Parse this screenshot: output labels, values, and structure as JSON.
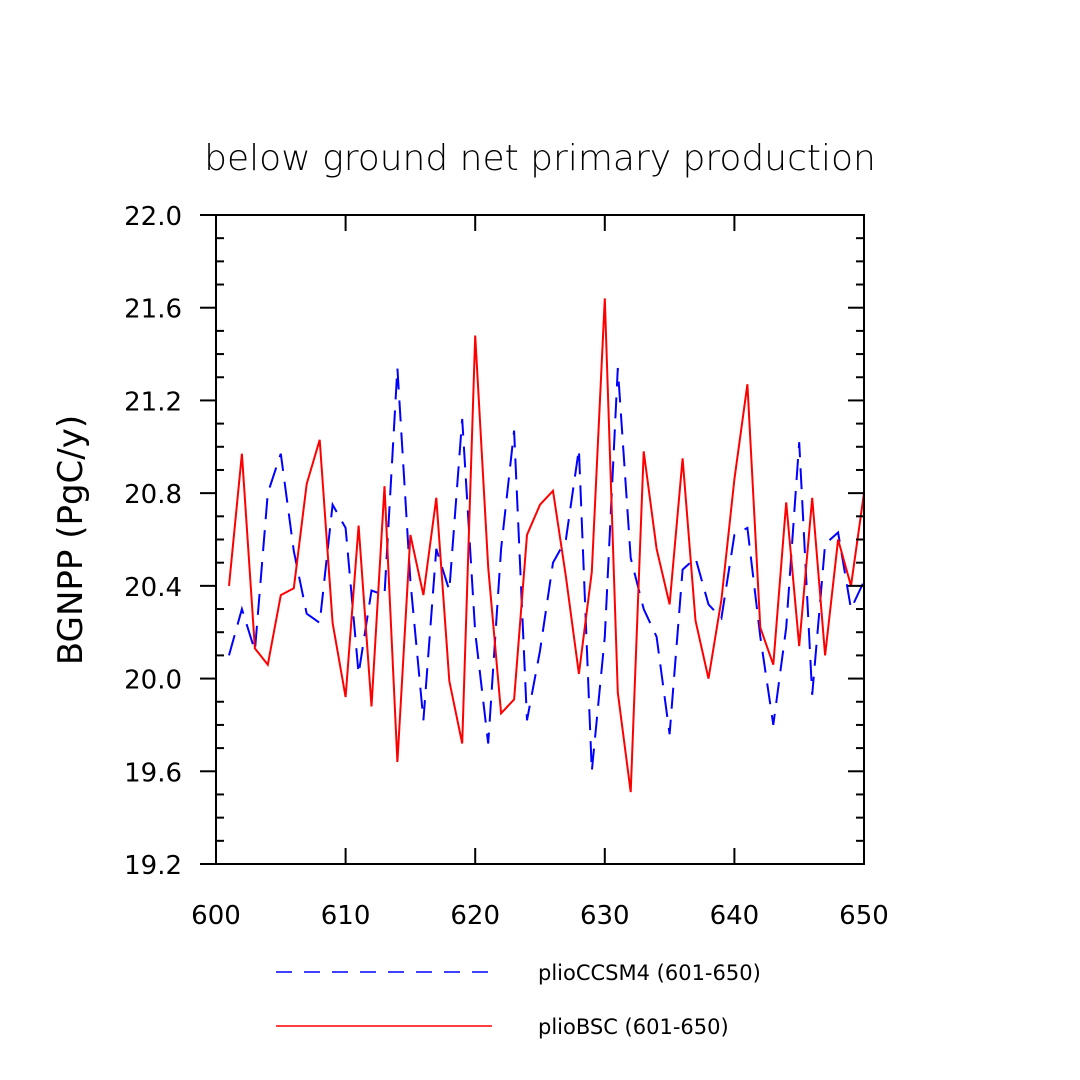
{
  "chart_data": {
    "type": "line",
    "title": "below ground net primary production",
    "xlabel": "",
    "ylabel": "BGNPP  (PgC/y)",
    "xlim": [
      600,
      650
    ],
    "ylim": [
      19.2,
      22.0
    ],
    "x_ticks": [
      600,
      610,
      620,
      630,
      640,
      650
    ],
    "x_tick_labels": [
      "600",
      "610",
      "620",
      "630",
      "640",
      "650"
    ],
    "y_ticks": [
      19.2,
      19.6,
      20.0,
      20.4,
      20.8,
      21.2,
      21.6,
      22.0
    ],
    "y_tick_labels": [
      "19.2",
      "19.6",
      "20.0",
      "20.4",
      "20.8",
      "21.2",
      "21.6",
      "22.0"
    ],
    "grid": false,
    "legend_position": "bottom",
    "x": [
      601,
      602,
      603,
      604,
      605,
      606,
      607,
      608,
      609,
      610,
      611,
      612,
      613,
      614,
      615,
      616,
      617,
      618,
      619,
      620,
      621,
      622,
      623,
      624,
      625,
      626,
      627,
      628,
      629,
      630,
      631,
      632,
      633,
      634,
      635,
      636,
      637,
      638,
      639,
      640,
      641,
      642,
      643,
      644,
      645,
      646,
      647,
      648,
      649,
      650
    ],
    "series": [
      {
        "name": "plioCCSM4 (601-650)",
        "color": "#0000ff",
        "style": "dashed",
        "values": [
          20.1,
          20.3,
          20.12,
          20.8,
          20.97,
          20.55,
          20.28,
          20.24,
          20.75,
          20.65,
          20.02,
          20.38,
          20.36,
          21.34,
          20.42,
          19.82,
          20.56,
          20.38,
          21.12,
          20.2,
          19.72,
          20.56,
          21.07,
          19.82,
          20.12,
          20.5,
          20.6,
          20.99,
          19.6,
          20.18,
          21.34,
          20.52,
          20.3,
          20.18,
          19.76,
          20.47,
          20.52,
          20.32,
          20.26,
          20.62,
          20.65,
          20.18,
          19.8,
          20.22,
          21.02,
          19.93,
          20.58,
          20.63,
          20.3,
          20.42
        ]
      },
      {
        "name": "plioBSC (601-650)",
        "color": "#ff0000",
        "style": "solid",
        "values": [
          20.4,
          20.97,
          20.13,
          20.06,
          20.36,
          20.39,
          20.84,
          21.03,
          20.24,
          19.92,
          20.66,
          19.88,
          20.83,
          19.64,
          20.62,
          20.36,
          20.78,
          19.99,
          19.72,
          21.48,
          20.48,
          19.85,
          19.91,
          20.62,
          20.75,
          20.81,
          20.44,
          20.02,
          20.46,
          21.64,
          19.94,
          19.51,
          20.98,
          20.56,
          20.32,
          20.95,
          20.25,
          20.0,
          20.34,
          20.86,
          21.27,
          20.22,
          20.06,
          20.76,
          20.14,
          20.78,
          20.1,
          20.6,
          20.4,
          20.8
        ]
      }
    ]
  }
}
